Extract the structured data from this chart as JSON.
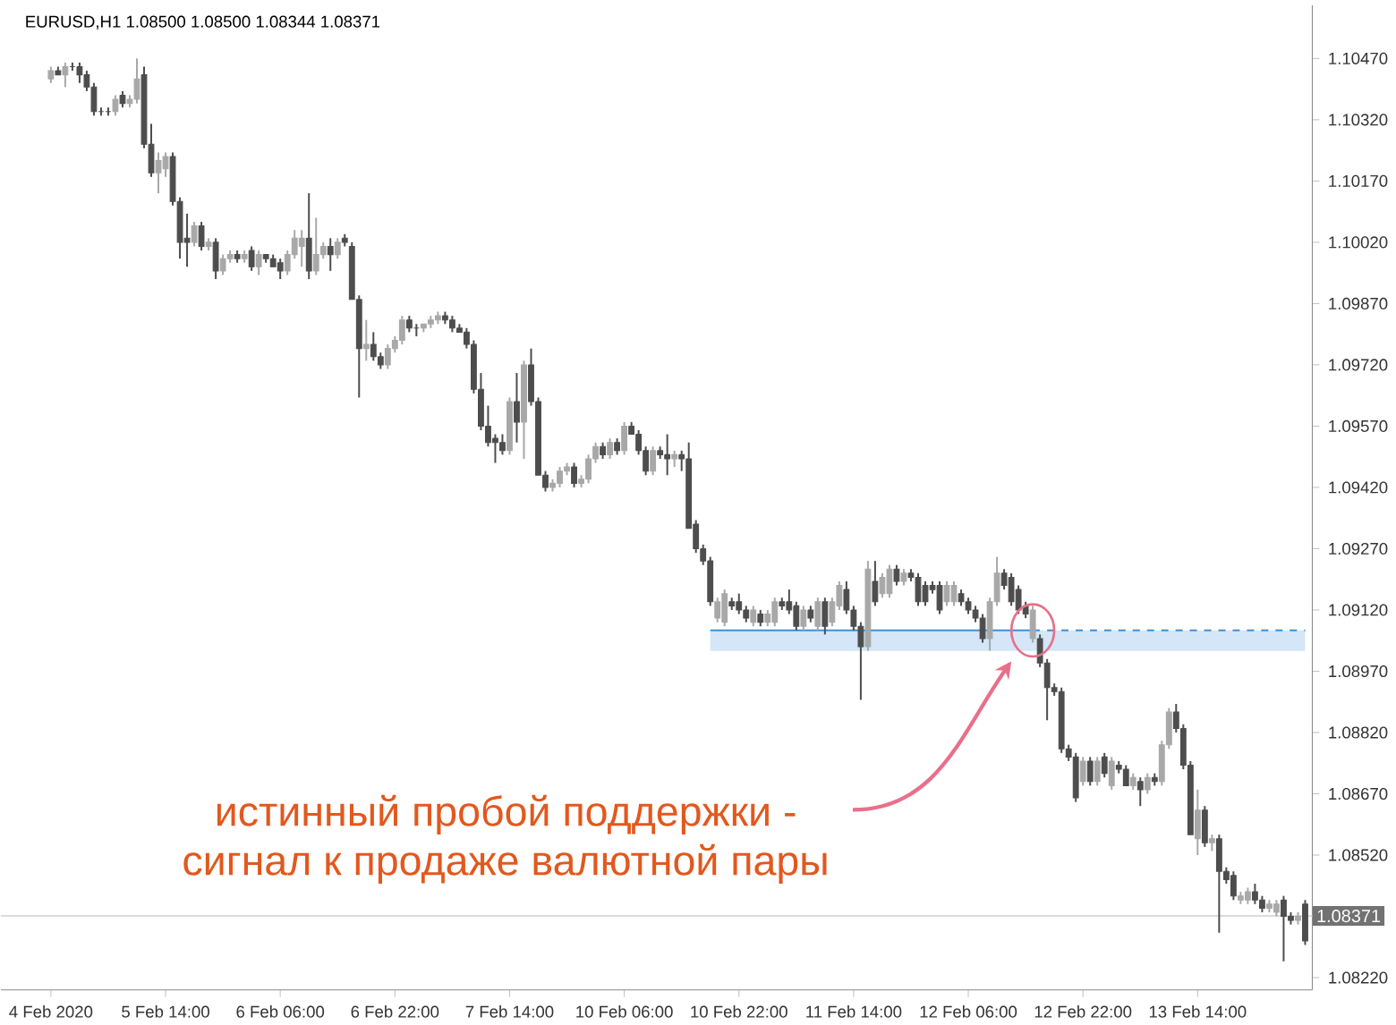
{
  "chart_data": {
    "type": "candlestick",
    "title": "EURUSD,H1  1.08500 1.08500 1.08344 1.08371",
    "categories": [
      "4 Feb 2020",
      null,
      null,
      null,
      null,
      null,
      null,
      null,
      null,
      null,
      null,
      null,
      null,
      null,
      null,
      null,
      "5 Feb 14:00",
      null,
      null,
      null,
      null,
      null,
      null,
      null,
      null,
      null,
      null,
      null,
      null,
      null,
      null,
      null,
      "6 Feb 06:00",
      null,
      null,
      null,
      null,
      null,
      null,
      null,
      null,
      null,
      null,
      null,
      null,
      null,
      null,
      null,
      "6 Feb 22:00",
      null,
      null,
      null,
      null,
      null,
      null,
      null,
      null,
      null,
      null,
      null,
      null,
      null,
      null,
      null,
      "7 Feb 14:00",
      null,
      null,
      null,
      null,
      null,
      null,
      null,
      null,
      null,
      null,
      null,
      null,
      null,
      null,
      null,
      "10 Feb 06:00",
      null,
      null,
      null,
      null,
      null,
      null,
      null,
      null,
      null,
      null,
      null,
      null,
      null,
      null,
      null,
      "10 Feb 22:00",
      null,
      null,
      null,
      null,
      null,
      null,
      null,
      null,
      null,
      null,
      null,
      null,
      null,
      null,
      null,
      "11 Feb 14:00",
      null,
      null,
      null,
      null,
      null,
      null,
      null,
      null,
      null,
      null,
      null,
      null,
      null,
      null,
      null,
      "12 Feb 06:00",
      null,
      null,
      null,
      null,
      null,
      null,
      null,
      null,
      null,
      null,
      null,
      null,
      null,
      null,
      null,
      "12 Feb 22:00",
      null,
      null,
      null,
      null,
      null,
      null,
      null,
      null,
      null,
      null,
      null,
      null,
      null,
      null,
      null,
      "13 Feb 14:00",
      null,
      null,
      null,
      null,
      null,
      null,
      null,
      null,
      null,
      null,
      null,
      null,
      null,
      null,
      null
    ],
    "ohlc": [
      [
        1.1042,
        1.1045,
        1.1041,
        1.1044
      ],
      [
        1.1044,
        1.1045,
        1.1043,
        1.1043
      ],
      [
        1.1043,
        1.1046,
        1.104,
        1.1045
      ],
      [
        1.1045,
        1.1046,
        1.1044,
        1.1045
      ],
      [
        1.1045,
        1.1046,
        1.1041,
        1.1043
      ],
      [
        1.1043,
        1.1044,
        1.1039,
        1.104
      ],
      [
        1.104,
        1.1041,
        1.1033,
        1.1034
      ],
      [
        1.1034,
        1.1035,
        1.1033,
        1.1034
      ],
      [
        1.1034,
        1.1035,
        1.1033,
        1.1034
      ],
      [
        1.1034,
        1.1038,
        1.1033,
        1.1037
      ],
      [
        1.1038,
        1.1039,
        1.1035,
        1.1036
      ],
      [
        1.1036,
        1.1038,
        1.1035,
        1.1037
      ],
      [
        1.1037,
        1.1047,
        1.1036,
        1.1042
      ],
      [
        1.1043,
        1.1045,
        1.1025,
        1.1026
      ],
      [
        1.1026,
        1.1031,
        1.1018,
        1.1019
      ],
      [
        1.1019,
        1.1024,
        1.1014,
        1.1022
      ],
      [
        1.102,
        1.1024,
        1.1018,
        1.1023
      ],
      [
        1.1023,
        1.1024,
        1.1011,
        1.1012
      ],
      [
        1.1012,
        1.1013,
        1.0998,
        1.1002
      ],
      [
        1.1003,
        1.1009,
        1.0996,
        1.1002
      ],
      [
        1.1002,
        1.1007,
        1.1001,
        1.1006
      ],
      [
        1.1006,
        1.1007,
        1.1,
        1.1001
      ],
      [
        1.1001,
        1.1003,
        1.1,
        1.1002
      ],
      [
        1.1002,
        1.1003,
        1.0993,
        1.0995
      ],
      [
        1.0995,
        1.0999,
        1.0994,
        1.0998
      ],
      [
        1.0998,
        1.1,
        1.0997,
        1.0999
      ],
      [
        1.0999,
        1.1,
        1.0997,
        1.0998
      ],
      [
        1.0998,
        1.1,
        1.0997,
        1.0999
      ],
      [
        1.1,
        1.1001,
        1.0995,
        1.0996
      ],
      [
        1.0996,
        1.1,
        1.0994,
        1.0999
      ],
      [
        1.0999,
        1.0999,
        1.0997,
        1.0998
      ],
      [
        1.0998,
        1.0999,
        1.0996,
        1.0996
      ],
      [
        1.0997,
        1.0998,
        1.0993,
        1.0995
      ],
      [
        1.0995,
        1.1,
        1.0994,
        1.0999
      ],
      [
        1.0999,
        1.1005,
        1.0998,
        1.1003
      ],
      [
        1.1001,
        1.1005,
        1.0996,
        1.1003
      ],
      [
        1.1003,
        1.1014,
        1.0993,
        1.0995
      ],
      [
        1.0995,
        1.1008,
        1.0994,
        1.0999
      ],
      [
        1.0999,
        1.1002,
        1.0998,
        1.1001
      ],
      [
        1.1001,
        1.1003,
        1.0995,
        1.0999
      ],
      [
        1.0999,
        1.1003,
        1.0998,
        1.1002
      ],
      [
        1.1003,
        1.1004,
        1.1001,
        1.1002
      ],
      [
        1.1001,
        1.1002,
        1.0988,
        1.0988
      ],
      [
        1.0988,
        1.0989,
        1.0964,
        1.0976
      ],
      [
        1.0976,
        1.0983,
        1.0973,
        1.0977
      ],
      [
        1.0977,
        1.098,
        1.0973,
        1.0974
      ],
      [
        1.0974,
        1.0975,
        1.0971,
        1.0972
      ],
      [
        1.0972,
        1.0977,
        1.0971,
        1.0976
      ],
      [
        1.0976,
        1.0979,
        1.0975,
        1.0978
      ],
      [
        1.0978,
        1.0984,
        1.0977,
        1.0983
      ],
      [
        1.0983,
        1.0984,
        1.098,
        1.0981
      ],
      [
        1.0981,
        1.0982,
        1.0979,
        1.0981
      ],
      [
        1.0981,
        1.0982,
        1.098,
        1.0982
      ],
      [
        1.0982,
        1.0984,
        1.0981,
        1.0983
      ],
      [
        1.0983,
        1.0985,
        1.0982,
        1.0984
      ],
      [
        1.0984,
        1.0985,
        1.0982,
        1.0983
      ],
      [
        1.0983,
        1.0984,
        1.098,
        1.0981
      ],
      [
        1.0981,
        1.0982,
        1.098,
        1.098
      ],
      [
        1.098,
        1.0981,
        1.0976,
        1.0977
      ],
      [
        1.0977,
        1.0978,
        1.0965,
        1.0966
      ],
      [
        1.0966,
        1.097,
        1.0956,
        1.0957
      ],
      [
        1.0957,
        1.0962,
        1.0952,
        1.0953
      ],
      [
        1.0954,
        1.0955,
        1.0948,
        1.0953
      ],
      [
        1.0953,
        1.0955,
        1.095,
        1.0951
      ],
      [
        1.0951,
        1.0964,
        1.095,
        1.0963
      ],
      [
        1.0963,
        1.097,
        1.0953,
        1.0958
      ],
      [
        1.0958,
        1.0973,
        1.0949,
        1.0972
      ],
      [
        1.0972,
        1.0976,
        1.0962,
        1.0963
      ],
      [
        1.0963,
        1.0964,
        1.0945,
        1.0945
      ],
      [
        1.0945,
        1.0946,
        1.0941,
        1.0942
      ],
      [
        1.0942,
        1.0944,
        1.0941,
        1.0943
      ],
      [
        1.0943,
        1.0947,
        1.0942,
        1.0946
      ],
      [
        1.0946,
        1.0948,
        1.0945,
        1.0947
      ],
      [
        1.0947,
        1.0948,
        1.0942,
        1.0943
      ],
      [
        1.0943,
        1.0945,
        1.0942,
        1.0944
      ],
      [
        1.0944,
        1.095,
        1.0943,
        1.0949
      ],
      [
        1.0949,
        1.0953,
        1.0948,
        1.0952
      ],
      [
        1.0952,
        1.0953,
        1.0949,
        1.095
      ],
      [
        1.095,
        1.0954,
        1.0949,
        1.0953
      ],
      [
        1.0953,
        1.0954,
        1.095,
        1.0951
      ],
      [
        1.0951,
        1.0958,
        1.095,
        1.0957
      ],
      [
        1.0957,
        1.0958,
        1.0955,
        1.0955
      ],
      [
        1.0955,
        1.0956,
        1.095,
        1.0951
      ],
      [
        1.0951,
        1.0952,
        1.0945,
        1.0946
      ],
      [
        1.0946,
        1.0952,
        1.0945,
        1.0951
      ],
      [
        1.0951,
        1.0952,
        1.0949,
        1.095
      ],
      [
        1.095,
        1.0955,
        1.0945,
        1.0949
      ],
      [
        1.0949,
        1.0951,
        1.0947,
        1.095
      ],
      [
        1.095,
        1.0951,
        1.0946,
        1.0949
      ],
      [
        1.0949,
        1.0953,
        1.0932,
        1.0932
      ],
      [
        1.0933,
        1.0934,
        1.0926,
        1.0927
      ],
      [
        1.0927,
        1.0928,
        1.0923,
        1.0924
      ],
      [
        1.0924,
        1.0925,
        1.0913,
        1.0914
      ],
      [
        1.091,
        1.0915,
        1.0909,
        1.0914
      ],
      [
        1.0909,
        1.0917,
        1.0908,
        1.0916
      ],
      [
        1.0914,
        1.0915,
        1.0912,
        1.0913
      ],
      [
        1.0914,
        1.0916,
        1.0911,
        1.0912
      ],
      [
        1.0912,
        1.0913,
        1.0909,
        1.091
      ],
      [
        1.0909,
        1.0913,
        1.0908,
        1.0912
      ],
      [
        1.0911,
        1.0912,
        1.0908,
        1.0909
      ],
      [
        1.0909,
        1.0912,
        1.0908,
        1.0911
      ],
      [
        1.0909,
        1.0915,
        1.0908,
        1.0914
      ],
      [
        1.0914,
        1.0915,
        1.0912,
        1.0913
      ],
      [
        1.0914,
        1.0917,
        1.0911,
        1.0912
      ],
      [
        1.0913,
        1.0914,
        1.0907,
        1.0908
      ],
      [
        1.0908,
        1.0913,
        1.0907,
        1.0912
      ],
      [
        1.0912,
        1.0913,
        1.0909,
        1.091
      ],
      [
        1.0908,
        1.0915,
        1.0907,
        1.0914
      ],
      [
        1.0914,
        1.0915,
        1.0906,
        1.0908
      ],
      [
        1.0909,
        1.0915,
        1.0908,
        1.0914
      ],
      [
        1.0913,
        1.0919,
        1.0912,
        1.0918
      ],
      [
        1.0917,
        1.0919,
        1.0911,
        1.0912
      ],
      [
        1.0912,
        1.0913,
        1.0907,
        1.0908
      ],
      [
        1.0908,
        1.0909,
        1.089,
        1.0903
      ],
      [
        1.0903,
        1.0924,
        1.0902,
        1.0922
      ],
      [
        1.0919,
        1.0924,
        1.0913,
        1.0914
      ],
      [
        1.0916,
        1.0921,
        1.0915,
        1.092
      ],
      [
        1.0916,
        1.0923,
        1.0915,
        1.0922
      ],
      [
        1.0922,
        1.0923,
        1.0918,
        1.0919
      ],
      [
        1.0919,
        1.0922,
        1.0918,
        1.0921
      ],
      [
        1.0921,
        1.0922,
        1.0919,
        1.092
      ],
      [
        1.092,
        1.0921,
        1.0913,
        1.0914
      ],
      [
        1.0918,
        1.0919,
        1.0913,
        1.0914
      ],
      [
        1.0918,
        1.0919,
        1.0916,
        1.0917
      ],
      [
        1.0918,
        1.0919,
        1.0911,
        1.0912
      ],
      [
        1.0914,
        1.0919,
        1.0913,
        1.0918
      ],
      [
        1.0914,
        1.0919,
        1.0913,
        1.0918
      ],
      [
        1.0916,
        1.0917,
        1.0913,
        1.0914
      ],
      [
        1.0914,
        1.0915,
        1.0911,
        1.0912
      ],
      [
        1.0912,
        1.0913,
        1.0909,
        1.091
      ],
      [
        1.091,
        1.0911,
        1.0904,
        1.0905
      ],
      [
        1.0905,
        1.0915,
        1.0902,
        1.0914
      ],
      [
        1.0914,
        1.0925,
        1.0913,
        1.0921
      ],
      [
        1.0921,
        1.0922,
        1.0917,
        1.0918
      ],
      [
        1.092,
        1.0921,
        1.0913,
        1.0914
      ],
      [
        1.0917,
        1.0918,
        1.0911,
        1.0912
      ],
      [
        1.0913,
        1.0914,
        1.091,
        1.0911
      ],
      [
        1.0905,
        1.0913,
        1.0904,
        1.0912
      ],
      [
        1.0905,
        1.0906,
        1.0898,
        1.0899
      ],
      [
        1.0899,
        1.09,
        1.0885,
        1.0893
      ],
      [
        1.0893,
        1.0894,
        1.0891,
        1.0892
      ],
      [
        1.0892,
        1.0893,
        1.0877,
        1.0878
      ],
      [
        1.0878,
        1.0879,
        1.0875,
        1.0876
      ],
      [
        1.0876,
        1.0877,
        1.0865,
        1.0866
      ],
      [
        1.087,
        1.0876,
        1.0869,
        1.0875
      ],
      [
        1.0875,
        1.0876,
        1.0869,
        1.087
      ],
      [
        1.087,
        1.0876,
        1.0869,
        1.0875
      ],
      [
        1.0876,
        1.0877,
        1.0871,
        1.0872
      ],
      [
        1.0869,
        1.0876,
        1.0868,
        1.0875
      ],
      [
        1.0874,
        1.0875,
        1.0872,
        1.0873
      ],
      [
        1.0873,
        1.0874,
        1.0869,
        1.0869
      ],
      [
        1.0869,
        1.0872,
        1.0868,
        1.0871
      ],
      [
        1.087,
        1.0871,
        1.0864,
        1.0868
      ],
      [
        1.0868,
        1.0872,
        1.0867,
        1.0871
      ],
      [
        1.0871,
        1.0872,
        1.0869,
        1.087
      ],
      [
        1.087,
        1.088,
        1.0869,
        1.0879
      ],
      [
        1.0879,
        1.0888,
        1.0878,
        1.0887
      ],
      [
        1.0887,
        1.0889,
        1.0882,
        1.0883
      ],
      [
        1.0883,
        1.0884,
        1.0873,
        1.0874
      ],
      [
        1.0874,
        1.0875,
        1.0857,
        1.0857
      ],
      [
        1.0856,
        1.0868,
        1.0852,
        1.0863
      ],
      [
        1.0863,
        1.0864,
        1.0854,
        1.0855
      ],
      [
        1.0855,
        1.0857,
        1.0853,
        1.0856
      ],
      [
        1.0856,
        1.0857,
        1.0833,
        1.0848
      ],
      [
        1.0848,
        1.0849,
        1.0845,
        1.0846
      ],
      [
        1.0847,
        1.0848,
        1.0841,
        1.0842
      ],
      [
        1.0841,
        1.0843,
        1.084,
        1.0842
      ],
      [
        1.0841,
        1.0844,
        1.084,
        1.0843
      ],
      [
        1.0843,
        1.0845,
        1.084,
        1.0841
      ],
      [
        1.0841,
        1.0842,
        1.0838,
        1.0839
      ],
      [
        1.0839,
        1.0841,
        1.0838,
        1.084
      ],
      [
        1.0838,
        1.0841,
        1.0837,
        1.084
      ],
      [
        1.0841,
        1.0842,
        1.0826,
        1.0837
      ],
      [
        1.0837,
        1.0838,
        1.0835,
        1.0836
      ],
      [
        1.0836,
        1.0838,
        1.0835,
        1.0837
      ],
      [
        1.084,
        1.0841,
        1.083,
        1.0831
      ]
    ],
    "colors": [
      "#a8a8a8",
      "#4d4d4d",
      "#a8a8a8",
      "#4d4d4d",
      "#4d4d4d",
      "#4d4d4d",
      "#4d4d4d",
      "#4d4d4d",
      "#4d4d4d",
      "#a8a8a8",
      "#4d4d4d",
      "#a8a8a8",
      "#a8a8a8",
      "#4d4d4d",
      "#4d4d4d",
      "#a8a8a8",
      "#a8a8a8",
      "#4d4d4d",
      "#4d4d4d",
      "#4d4d4d",
      "#a8a8a8",
      "#4d4d4d",
      "#a8a8a8",
      "#4d4d4d",
      "#a8a8a8",
      "#a8a8a8",
      "#4d4d4d",
      "#a8a8a8",
      "#4d4d4d",
      "#a8a8a8",
      "#4d4d4d",
      "#4d4d4d",
      "#4d4d4d",
      "#a8a8a8",
      "#a8a8a8",
      "#a8a8a8",
      "#4d4d4d",
      "#a8a8a8",
      "#a8a8a8",
      "#4d4d4d",
      "#a8a8a8",
      "#4d4d4d",
      "#4d4d4d",
      "#4d4d4d",
      "#a8a8a8",
      "#4d4d4d",
      "#4d4d4d",
      "#a8a8a8",
      "#a8a8a8",
      "#a8a8a8",
      "#4d4d4d",
      "#4d4d4d",
      "#a8a8a8",
      "#a8a8a8",
      "#a8a8a8",
      "#4d4d4d",
      "#4d4d4d",
      "#4d4d4d",
      "#4d4d4d",
      "#4d4d4d",
      "#4d4d4d",
      "#4d4d4d",
      "#4d4d4d",
      "#4d4d4d",
      "#a8a8a8",
      "#4d4d4d",
      "#a8a8a8",
      "#4d4d4d",
      "#4d4d4d",
      "#4d4d4d",
      "#a8a8a8",
      "#a8a8a8",
      "#a8a8a8",
      "#4d4d4d",
      "#a8a8a8",
      "#a8a8a8",
      "#a8a8a8",
      "#4d4d4d",
      "#a8a8a8",
      "#4d4d4d",
      "#a8a8a8",
      "#4d4d4d",
      "#4d4d4d",
      "#4d4d4d",
      "#a8a8a8",
      "#4d4d4d",
      "#4d4d4d",
      "#a8a8a8",
      "#4d4d4d",
      "#4d4d4d",
      "#4d4d4d",
      "#4d4d4d",
      "#4d4d4d",
      "#a8a8a8",
      "#a8a8a8",
      "#4d4d4d",
      "#4d4d4d",
      "#4d4d4d",
      "#a8a8a8",
      "#4d4d4d",
      "#a8a8a8",
      "#a8a8a8",
      "#4d4d4d",
      "#4d4d4d",
      "#4d4d4d",
      "#a8a8a8",
      "#4d4d4d",
      "#a8a8a8",
      "#4d4d4d",
      "#a8a8a8",
      "#a8a8a8",
      "#4d4d4d",
      "#4d4d4d",
      "#4d4d4d",
      "#a8a8a8",
      "#4d4d4d",
      "#a8a8a8",
      "#a8a8a8",
      "#4d4d4d",
      "#a8a8a8",
      "#4d4d4d",
      "#4d4d4d",
      "#4d4d4d",
      "#4d4d4d",
      "#4d4d4d",
      "#a8a8a8",
      "#a8a8a8",
      "#4d4d4d",
      "#4d4d4d",
      "#4d4d4d",
      "#4d4d4d",
      "#a8a8a8",
      "#a8a8a8",
      "#4d4d4d",
      "#4d4d4d",
      "#4d4d4d",
      "#4d4d4d",
      "#a8a8a8",
      "#4d4d4d",
      "#4d4d4d",
      "#4d4d4d",
      "#4d4d4d",
      "#4d4d4d",
      "#4d4d4d",
      "#a8a8a8",
      "#4d4d4d",
      "#a8a8a8",
      "#4d4d4d",
      "#a8a8a8",
      "#4d4d4d",
      "#4d4d4d",
      "#a8a8a8",
      "#4d4d4d",
      "#a8a8a8",
      "#4d4d4d",
      "#a8a8a8",
      "#a8a8a8",
      "#4d4d4d",
      "#4d4d4d",
      "#4d4d4d",
      "#a8a8a8",
      "#4d4d4d",
      "#a8a8a8",
      "#4d4d4d",
      "#4d4d4d",
      "#4d4d4d",
      "#a8a8a8",
      "#a8a8a8",
      "#4d4d4d",
      "#4d4d4d",
      "#a8a8a8",
      "#a8a8a8",
      "#4d4d4d",
      "#4d4d4d",
      "#a8a8a8",
      "#4d4d4d"
    ],
    "series": [
      {
        "type": "line",
        "color": "#3d8fd9",
        "line_style": "solid",
        "values": [
          null,
          null,
          null,
          null,
          null,
          null,
          null,
          null,
          null,
          null,
          null,
          null,
          null,
          null,
          null,
          null,
          null,
          null,
          null,
          null,
          null,
          null,
          null,
          null,
          null,
          null,
          null,
          null,
          null,
          null,
          null,
          null,
          null,
          null,
          null,
          null,
          null,
          null,
          null,
          null,
          null,
          null,
          null,
          null,
          null,
          null,
          null,
          null,
          null,
          null,
          null,
          null,
          null,
          null,
          null,
          null,
          null,
          null,
          null,
          null,
          null,
          null,
          null,
          null,
          null,
          null,
          null,
          null,
          null,
          null,
          null,
          null,
          null,
          null,
          null,
          null,
          null,
          null,
          null,
          null,
          null,
          null,
          null,
          null,
          null,
          null,
          null,
          null,
          null,
          null,
          null,
          null,
          1.0907,
          1.0907,
          1.0907,
          1.0907,
          1.0907,
          1.0907,
          1.0907,
          1.0907,
          1.0907,
          1.0907,
          1.0907,
          1.0907,
          1.0907,
          1.0907,
          1.0907,
          1.0907,
          1.0907,
          1.0907,
          1.0907,
          1.0907,
          1.0907,
          1.0907,
          1.0907,
          1.0907,
          1.0907,
          1.0907,
          1.0907,
          1.0907,
          1.0907,
          1.0907,
          1.0907,
          1.0907,
          1.0907,
          1.0907,
          1.0907,
          1.0907,
          1.0907,
          1.0907,
          1.0907,
          1.0907,
          1.0907,
          1.0907,
          1.0907,
          1.0907,
          1.0907,
          1.0907,
          null,
          null,
          null,
          null,
          null,
          null,
          null,
          null,
          null,
          null,
          null,
          null,
          null,
          null,
          null,
          null,
          null,
          null,
          null,
          null,
          null,
          null,
          null,
          null,
          null,
          null,
          null,
          null,
          null,
          null,
          null,
          null,
          null,
          null,
          null,
          null,
          null,
          null
        ],
        "lower": [
          null,
          null,
          null,
          null,
          null,
          null,
          null,
          null,
          null,
          null,
          null,
          null,
          null,
          null,
          null,
          null,
          null,
          null,
          null,
          null,
          null,
          null,
          null,
          null,
          null,
          null,
          null,
          null,
          null,
          null,
          null,
          null,
          null,
          null,
          null,
          null,
          null,
          null,
          null,
          null,
          null,
          null,
          null,
          null,
          null,
          null,
          null,
          null,
          null,
          null,
          null,
          null,
          null,
          null,
          null,
          null,
          null,
          null,
          null,
          null,
          null,
          null,
          null,
          null,
          null,
          null,
          null,
          null,
          null,
          null,
          null,
          null,
          null,
          null,
          null,
          null,
          null,
          null,
          null,
          null,
          null,
          null,
          null,
          null,
          null,
          null,
          null,
          null,
          null,
          null,
          null,
          null,
          1.0902,
          1.0902,
          1.0902,
          1.0902,
          1.0902,
          1.0902,
          1.0902,
          1.0902,
          1.0902,
          1.0902,
          1.0902,
          1.0902,
          1.0902,
          1.0902,
          1.0902,
          1.0902,
          1.0902,
          1.0902,
          1.0902,
          1.0902,
          1.0902,
          1.0902,
          1.0902,
          1.0902,
          1.0902,
          1.0902,
          1.0902,
          1.0902,
          1.0902,
          1.0902,
          1.0902,
          1.0902,
          1.0902,
          1.0902,
          1.0902,
          1.0902,
          1.0902,
          1.0902,
          1.0902,
          1.0902,
          1.0902,
          1.0902,
          1.0902,
          1.0902,
          1.0902,
          1.0902,
          null,
          null,
          null,
          null,
          null,
          null,
          null,
          null,
          null,
          null,
          null,
          null,
          null,
          null,
          null,
          null,
          null,
          null,
          null,
          null,
          null,
          null,
          null,
          null,
          null,
          null,
          null,
          null,
          null,
          null,
          null,
          null,
          null,
          null,
          null,
          null,
          null,
          null
        ],
        "upper": [
          null,
          null,
          null,
          null,
          null,
          null,
          null,
          null,
          null,
          null,
          null,
          null,
          null,
          null,
          null,
          null,
          null,
          null,
          null,
          null,
          null,
          null,
          null,
          null,
          null,
          null,
          null,
          null,
          null,
          null,
          null,
          null,
          null,
          null,
          null,
          null,
          null,
          null,
          null,
          null,
          null,
          null,
          null,
          null,
          null,
          null,
          null,
          null,
          null,
          null,
          null,
          null,
          null,
          null,
          null,
          null,
          null,
          null,
          null,
          null,
          null,
          null,
          null,
          null,
          null,
          null,
          null,
          null,
          null,
          null,
          null,
          null,
          null,
          null,
          null,
          null,
          null,
          null,
          null,
          null,
          null,
          null,
          null,
          null,
          null,
          null,
          null,
          null,
          null,
          null,
          null,
          null,
          1.0907,
          1.0907,
          1.0907,
          1.0907,
          1.0907,
          1.0907,
          1.0907,
          1.0907,
          1.0907,
          1.0907,
          1.0907,
          1.0907,
          1.0907,
          1.0907,
          1.0907,
          1.0907,
          1.0907,
          1.0907,
          1.0907,
          1.0907,
          1.0907,
          1.0907,
          1.0907,
          1.0907,
          1.0907,
          1.0907,
          1.0907,
          1.0907,
          1.0907,
          1.0907,
          1.0907,
          1.0907,
          1.0907,
          1.0907,
          1.0907,
          1.0907,
          1.0907,
          1.0907,
          1.0907,
          1.0907,
          1.0907,
          1.0907,
          1.0907,
          1.0907,
          1.0907,
          1.0907,
          null,
          null,
          null,
          null,
          null,
          null,
          null,
          null,
          null,
          null,
          null,
          null,
          null,
          null,
          null,
          null,
          null,
          null,
          null,
          null,
          null,
          null,
          null,
          null,
          null,
          null,
          null,
          null,
          null,
          null,
          null,
          null,
          null,
          null,
          null,
          null,
          null,
          null
        ]
      },
      {
        "type": "line",
        "color": "#3d8fd9",
        "line_style": "dashed",
        "values": [
          null,
          null,
          null,
          null,
          null,
          null,
          null,
          null,
          null,
          null,
          null,
          null,
          null,
          null,
          null,
          null,
          null,
          null,
          null,
          null,
          null,
          null,
          null,
          null,
          null,
          null,
          null,
          null,
          null,
          null,
          null,
          null,
          null,
          null,
          null,
          null,
          null,
          null,
          null,
          null,
          null,
          null,
          null,
          null,
          null,
          null,
          null,
          null,
          null,
          null,
          null,
          null,
          null,
          null,
          null,
          null,
          null,
          null,
          null,
          null,
          null,
          null,
          null,
          null,
          null,
          null,
          null,
          null,
          null,
          null,
          null,
          null,
          null,
          null,
          null,
          null,
          null,
          null,
          null,
          null,
          null,
          null,
          null,
          null,
          null,
          null,
          null,
          null,
          null,
          null,
          null,
          null,
          null,
          null,
          null,
          null,
          null,
          null,
          null,
          null,
          null,
          null,
          null,
          null,
          null,
          null,
          null,
          null,
          null,
          null,
          null,
          null,
          null,
          null,
          null,
          null,
          null,
          null,
          null,
          null,
          null,
          null,
          null,
          null,
          null,
          null,
          null,
          null,
          null,
          null,
          null,
          null,
          null,
          null,
          null,
          null,
          null,
          1.0907,
          1.0907,
          1.0907,
          1.0907,
          1.0907,
          1.0907,
          1.0907,
          1.0907,
          1.0907,
          1.0907,
          1.0907,
          1.0907,
          1.0907,
          1.0907,
          1.0907,
          1.0907,
          1.0907,
          1.0907,
          1.0907,
          1.0907,
          1.0907,
          1.0907,
          1.0907,
          1.0907,
          1.0907,
          1.0907,
          1.0907,
          1.0907,
          1.0907,
          1.0907,
          1.0907,
          1.0907,
          1.0907,
          1.0907,
          1.0907,
          1.0907,
          1.0907,
          1.0907,
          1.0907
        ],
        "lower": [
          null,
          null,
          null,
          null,
          null,
          null,
          null,
          null,
          null,
          null,
          null,
          null,
          null,
          null,
          null,
          null,
          null,
          null,
          null,
          null,
          null,
          null,
          null,
          null,
          null,
          null,
          null,
          null,
          null,
          null,
          null,
          null,
          null,
          null,
          null,
          null,
          null,
          null,
          null,
          null,
          null,
          null,
          null,
          null,
          null,
          null,
          null,
          null,
          null,
          null,
          null,
          null,
          null,
          null,
          null,
          null,
          null,
          null,
          null,
          null,
          null,
          null,
          null,
          null,
          null,
          null,
          null,
          null,
          null,
          null,
          null,
          null,
          null,
          null,
          null,
          null,
          null,
          null,
          null,
          null,
          null,
          null,
          null,
          null,
          null,
          null,
          null,
          null,
          null,
          null,
          null,
          null,
          null,
          null,
          null,
          null,
          null,
          null,
          null,
          null,
          null,
          null,
          null,
          null,
          null,
          null,
          null,
          null,
          null,
          null,
          null,
          null,
          null,
          null,
          null,
          null,
          null,
          null,
          null,
          null,
          null,
          null,
          null,
          null,
          null,
          null,
          null,
          null,
          null,
          null,
          null,
          null,
          null,
          null,
          null,
          null,
          null,
          1.0902,
          1.0902,
          1.0902,
          1.0902,
          1.0902,
          1.0902,
          1.0902,
          1.0902,
          1.0902,
          1.0902,
          1.0902,
          1.0902,
          1.0902,
          1.0902,
          1.0902,
          1.0902,
          1.0902,
          1.0902,
          1.0902,
          1.0902,
          1.0902,
          1.0902,
          1.0902,
          1.0902,
          1.0902,
          1.0902,
          1.0902,
          1.0902,
          1.0902,
          1.0902,
          1.0902,
          1.0902,
          1.0902,
          1.0902,
          1.0902,
          1.0902,
          1.0902,
          1.0902,
          1.0902
        ],
        "upper": [
          null,
          null,
          null,
          null,
          null,
          null,
          null,
          null,
          null,
          null,
          null,
          null,
          null,
          null,
          null,
          null,
          null,
          null,
          null,
          null,
          null,
          null,
          null,
          null,
          null,
          null,
          null,
          null,
          null,
          null,
          null,
          null,
          null,
          null,
          null,
          null,
          null,
          null,
          null,
          null,
          null,
          null,
          null,
          null,
          null,
          null,
          null,
          null,
          null,
          null,
          null,
          null,
          null,
          null,
          null,
          null,
          null,
          null,
          null,
          null,
          null,
          null,
          null,
          null,
          null,
          null,
          null,
          null,
          null,
          null,
          null,
          null,
          null,
          null,
          null,
          null,
          null,
          null,
          null,
          null,
          null,
          null,
          null,
          null,
          null,
          null,
          null,
          null,
          null,
          null,
          null,
          null,
          null,
          null,
          null,
          null,
          null,
          null,
          null,
          null,
          null,
          null,
          null,
          null,
          null,
          null,
          null,
          null,
          null,
          null,
          null,
          null,
          null,
          null,
          null,
          null,
          null,
          null,
          null,
          null,
          null,
          null,
          null,
          null,
          null,
          null,
          null,
          null,
          null,
          null,
          null,
          null,
          null,
          null,
          null,
          null,
          null,
          1.0907,
          1.0907,
          1.0907,
          1.0907,
          1.0907,
          1.0907,
          1.0907,
          1.0907,
          1.0907,
          1.0907,
          1.0907,
          1.0907,
          1.0907,
          1.0907,
          1.0907,
          1.0907,
          1.0907,
          1.0907,
          1.0907,
          1.0907,
          1.0907,
          1.0907,
          1.0907,
          1.0907,
          1.0907,
          1.0907,
          1.0907,
          1.0907,
          1.0907,
          1.0907,
          1.0907,
          1.0907,
          1.0907,
          1.0907,
          1.0907,
          1.0907,
          1.0907,
          1.0907,
          1.0907
        ]
      }
    ],
    "ylim": [
      1.0819,
      1.106
    ],
    "yticks": [
      {
        "value": 1.1047,
        "label": "1.10470"
      },
      {
        "value": 1.1032,
        "label": "1.10320"
      },
      {
        "value": 1.1017,
        "label": "1.10170"
      },
      {
        "value": 1.1002,
        "label": "1.10020"
      },
      {
        "value": 1.0987,
        "label": "1.09870"
      },
      {
        "value": 1.0972,
        "label": "1.09720"
      },
      {
        "value": 1.0957,
        "label": "1.09570"
      },
      {
        "value": 1.0942,
        "label": "1.09420"
      },
      {
        "value": 1.0927,
        "label": "1.09270"
      },
      {
        "value": 1.0912,
        "label": "1.09120"
      },
      {
        "value": 1.0897,
        "label": "1.08970"
      },
      {
        "value": 1.0882,
        "label": "1.08820"
      },
      {
        "value": 1.0867,
        "label": "1.08670"
      },
      {
        "value": 1.0852,
        "label": "1.08520"
      },
      {
        "value": 1.0822,
        "label": "1.08220"
      }
    ],
    "ref_lines": [
      {
        "axis": "y",
        "value": 1.08371,
        "label": "1.08371",
        "color": "#cfcfcf"
      }
    ],
    "annotations": [
      "истинный пробой поддержки -",
      "сигнал к продаже валютной пары"
    ]
  }
}
